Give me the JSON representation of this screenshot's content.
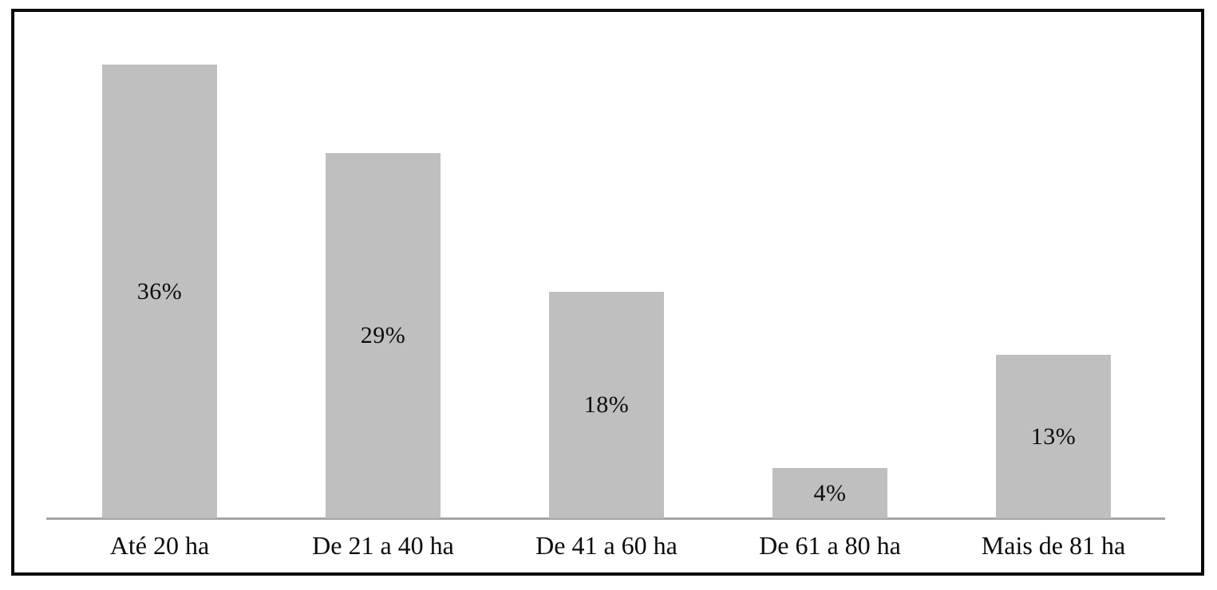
{
  "chart_data": {
    "type": "bar",
    "categories": [
      "Até 20 ha",
      "De 21 a 40 ha",
      "De 41 a 60 ha",
      "De 61 a 80 ha",
      "Mais de 81 ha"
    ],
    "values": [
      36,
      29,
      18,
      4,
      13
    ],
    "value_labels": [
      "36%",
      "29%",
      "18%",
      "4%",
      "13%"
    ],
    "title": "",
    "xlabel": "",
    "ylabel": "",
    "ylim": [
      0,
      40
    ],
    "grid": false,
    "legend": false,
    "bar_color": "#bfbfbf",
    "axis_line_color": "#a6a6a6",
    "label_color": "#0c0c0c",
    "frame_border_color": "#0a0a0a",
    "background_color": "#ffffff"
  }
}
